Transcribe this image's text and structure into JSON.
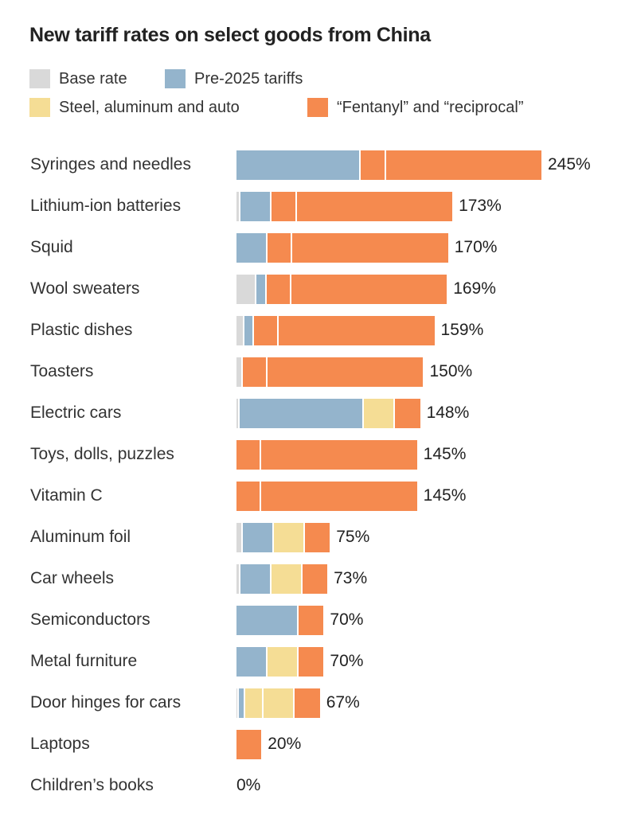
{
  "chart_data": {
    "type": "bar",
    "orientation": "horizontal-stacked",
    "title": "New tariff rates on select goods from China",
    "legend": [
      {
        "key": "base",
        "label": "Base rate",
        "color": "#d9d9d9"
      },
      {
        "key": "pre",
        "label": "Pre-2025 tariffs",
        "color": "#94b4cc"
      },
      {
        "key": "steel",
        "label": "Steel, aluminum and auto",
        "color": "#f5dd95"
      },
      {
        "key": "fent",
        "label": "“Fentanyl” and “reciprocal”",
        "color": "#f58a4f"
      }
    ],
    "max": 245,
    "rows": [
      {
        "label": "Syringes and needles",
        "total": "245%",
        "segments": [
          [
            "pre",
            100
          ],
          [
            "fent",
            20
          ],
          [
            "fent",
            125
          ]
        ]
      },
      {
        "label": "Lithium-ion batteries",
        "total": "173%",
        "segments": [
          [
            "base",
            3.4
          ],
          [
            "pre",
            25
          ],
          [
            "fent",
            20
          ],
          [
            "fent",
            125
          ]
        ]
      },
      {
        "label": "Squid",
        "total": "170%",
        "segments": [
          [
            "pre",
            25
          ],
          [
            "fent",
            20
          ],
          [
            "fent",
            125
          ]
        ]
      },
      {
        "label": "Wool sweaters",
        "total": "169%",
        "segments": [
          [
            "base",
            16
          ],
          [
            "pre",
            8
          ],
          [
            "fent",
            20
          ],
          [
            "fent",
            125
          ]
        ]
      },
      {
        "label": "Plastic dishes",
        "total": "159%",
        "segments": [
          [
            "base",
            6.5
          ],
          [
            "pre",
            7.5
          ],
          [
            "fent",
            20
          ],
          [
            "fent",
            125
          ]
        ]
      },
      {
        "label": "Toasters",
        "total": "150%",
        "segments": [
          [
            "base",
            5
          ],
          [
            "fent",
            20
          ],
          [
            "fent",
            125
          ]
        ]
      },
      {
        "label": "Electric cars",
        "total": "148%",
        "segments": [
          [
            "base",
            2.5
          ],
          [
            "pre",
            100
          ],
          [
            "steel",
            25
          ],
          [
            "fent",
            20
          ]
        ]
      },
      {
        "label": "Toys, dolls, puzzles",
        "total": "145%",
        "segments": [
          [
            "fent",
            20
          ],
          [
            "fent",
            125
          ]
        ]
      },
      {
        "label": "Vitamin C",
        "total": "145%",
        "segments": [
          [
            "fent",
            20
          ],
          [
            "fent",
            125
          ]
        ]
      },
      {
        "label": "Aluminum foil",
        "total": "75%",
        "segments": [
          [
            "base",
            5
          ],
          [
            "pre",
            25
          ],
          [
            "steel",
            25
          ],
          [
            "fent",
            20
          ]
        ]
      },
      {
        "label": "Car wheels",
        "total": "73%",
        "segments": [
          [
            "base",
            3
          ],
          [
            "pre",
            25
          ],
          [
            "steel",
            25
          ],
          [
            "fent",
            20
          ]
        ]
      },
      {
        "label": "Semiconductors",
        "total": "70%",
        "segments": [
          [
            "pre",
            50
          ],
          [
            "fent",
            20
          ]
        ]
      },
      {
        "label": "Metal furniture",
        "total": "70%",
        "segments": [
          [
            "pre",
            25
          ],
          [
            "steel",
            25
          ],
          [
            "fent",
            20
          ]
        ]
      },
      {
        "label": "Door hinges for cars",
        "total": "67%",
        "segments": [
          [
            "base",
            2
          ],
          [
            "pre",
            5
          ],
          [
            "steel",
            15
          ],
          [
            "steel",
            25
          ],
          [
            "fent",
            20
          ]
        ]
      },
      {
        "label": "Laptops",
        "total": "20%",
        "segments": [
          [
            "fent",
            20
          ]
        ]
      },
      {
        "label": "Children’s books",
        "total": "0%",
        "segments": []
      }
    ]
  }
}
